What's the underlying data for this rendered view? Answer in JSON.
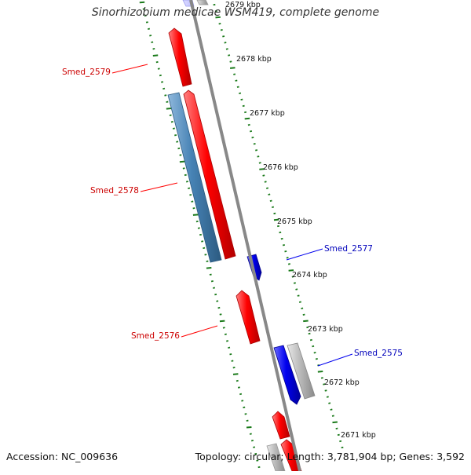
{
  "title": "Sinorhizobium medicae WSM419, complete genome",
  "footer": {
    "accession": "Accession: NC_009636",
    "summary": "Topology: circular; Length: 3,781,904 bp; Genes: 3,592"
  },
  "colors": {
    "forward_gene": "#ff0000",
    "reverse_gene": "#0000ee",
    "cds": "#4682b4",
    "other_gene": "#bbbbbb",
    "tick": "#1a7a1a",
    "backbone": "#888888"
  },
  "kbp_labels": [
    {
      "kbp": 2679,
      "label": "2679 kbp"
    },
    {
      "kbp": 2678,
      "label": "2678 kbp"
    },
    {
      "kbp": 2677,
      "label": "2677 kbp"
    },
    {
      "kbp": 2676,
      "label": "2676 kbp"
    },
    {
      "kbp": 2675,
      "label": "2675 kbp"
    },
    {
      "kbp": 2674,
      "label": "2674 kbp"
    },
    {
      "kbp": 2673,
      "label": "2673 kbp"
    },
    {
      "kbp": 2672,
      "label": "2672 kbp"
    },
    {
      "kbp": 2671,
      "label": "2671 kbp"
    }
  ],
  "genes": [
    {
      "label": "Smed_2579",
      "strand": "forward",
      "color": "#ff0000"
    },
    {
      "label": "Smed_2578",
      "strand": "forward",
      "color": "#ff0000"
    },
    {
      "label": "Smed_2577",
      "strand": "reverse",
      "color": "#0000ee"
    },
    {
      "label": "Smed_2576",
      "strand": "forward",
      "color": "#ff0000"
    },
    {
      "label": "Smed_2575",
      "strand": "reverse",
      "color": "#0000ee"
    }
  ]
}
